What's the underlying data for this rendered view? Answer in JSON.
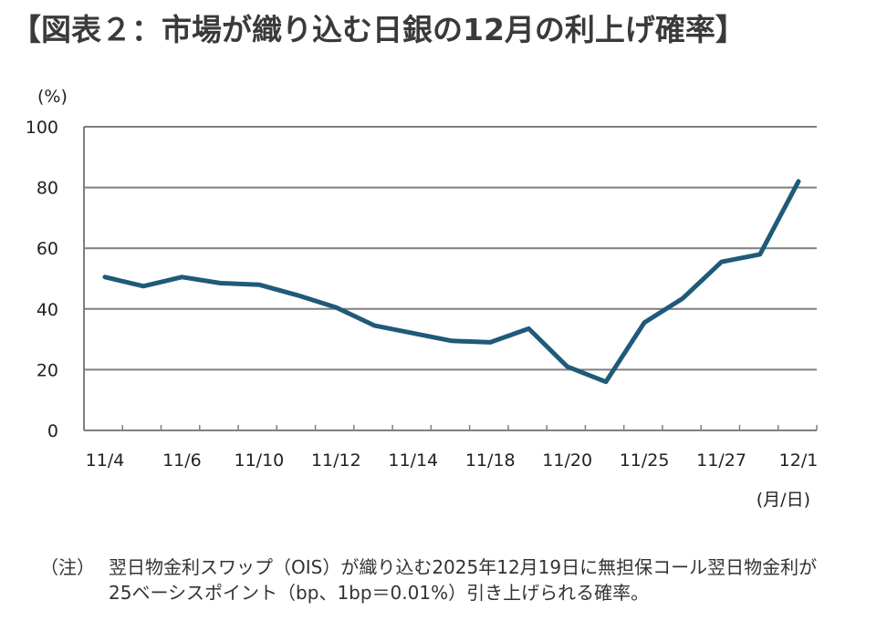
{
  "title": "【図表２：市場が織り込む日銀の12月の利上げ確率】",
  "note": {
    "label": "（注）",
    "line1": "翌日物金利スワップ（OIS）が織り込む2025年12月19日に無担保コール翌日物金利が",
    "line2": "25ベーシスポイント（bp、1bp＝0.01%）引き上げられる確率。"
  },
  "colors": {
    "line": "#1f5a78",
    "grid": "#7f7f7f",
    "axis": "#7f7f7f"
  },
  "chart_data": {
    "type": "line",
    "title": "市場が織り込む日銀の12月の利上げ確率",
    "ylabel": "(%)",
    "xlabel": "(月/日)",
    "ylim": [
      0,
      100
    ],
    "yticks": [
      "0",
      "20",
      "40",
      "60",
      "80",
      "100"
    ],
    "xtick_labels": [
      "11/4",
      "11/6",
      "11/10",
      "11/12",
      "11/14",
      "11/18",
      "11/20",
      "11/25",
      "11/27",
      "12/1"
    ],
    "grid": true,
    "series": [
      {
        "values": [
          50.5,
          47.5,
          50.5,
          48.5,
          48,
          44.5,
          40.5,
          34.5,
          32,
          29.5,
          29,
          33.5,
          21,
          16,
          35.5,
          43.5,
          55.5,
          58,
          82
        ]
      }
    ]
  }
}
